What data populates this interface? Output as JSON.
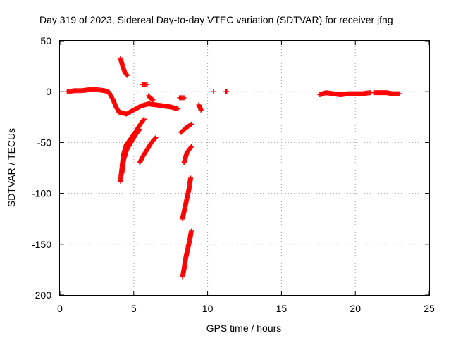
{
  "chart_data": {
    "type": "scatter",
    "title": "Day 319 of 2023, Sidereal Day-to-day VTEC variation (SDTVAR) for receiver jfng",
    "xlabel": "GPS time / hours",
    "ylabel": "SDTVAR / TECUs",
    "xlim": [
      0,
      25
    ],
    "ylim": [
      -200,
      50
    ],
    "xticks": [
      "0",
      "5",
      "10",
      "15",
      "20",
      "25"
    ],
    "yticks": [
      "50",
      "0",
      "-50",
      "-100",
      "-150",
      "-200"
    ],
    "grid": true,
    "marker": "+",
    "color": "#ff0000",
    "segments": [
      {
        "x": [
          0.5,
          1.0,
          1.5,
          2.0,
          2.5,
          3.0,
          3.3
        ],
        "y": [
          0,
          1,
          1,
          2,
          2,
          1,
          0
        ]
      },
      {
        "x": [
          3.3,
          3.6,
          3.8,
          4.0
        ],
        "y": [
          0,
          -8,
          -15,
          -20
        ]
      },
      {
        "x": [
          4.0,
          4.5,
          5.0,
          5.5,
          6.0,
          6.5,
          7.0,
          7.5,
          8.0
        ],
        "y": [
          -20,
          -22,
          -18,
          -14,
          -12,
          -13,
          -14,
          -15,
          -17
        ]
      },
      {
        "x": [
          4.1,
          4.25,
          4.4,
          4.55
        ],
        "y": [
          33,
          25,
          19,
          16
        ]
      },
      {
        "x": [
          5.6,
          5.9
        ],
        "y": [
          7,
          7
        ]
      },
      {
        "x": [
          6.0,
          6.1,
          6.3
        ],
        "y": [
          -4,
          -6,
          -8
        ]
      },
      {
        "x": [
          8.1,
          8.4
        ],
        "y": [
          -6,
          -6
        ]
      },
      {
        "x": [
          4.1,
          4.2,
          4.3,
          4.5,
          4.8,
          5.1,
          5.4,
          5.7
        ],
        "y": [
          -88,
          -75,
          -62,
          -52,
          -46,
          -40,
          -33,
          -27
        ]
      },
      {
        "x": [
          4.2,
          4.3,
          4.5,
          4.8,
          5.1,
          5.4
        ],
        "y": [
          -80,
          -68,
          -58,
          -50,
          -43,
          -37
        ]
      },
      {
        "x": [
          5.4,
          5.6,
          5.9,
          6.2,
          6.5
        ],
        "y": [
          -70,
          -64,
          -57,
          -50,
          -45
        ]
      },
      {
        "x": [
          8.2,
          8.5,
          8.9
        ],
        "y": [
          -40,
          -36,
          -32
        ]
      },
      {
        "x": [
          8.4,
          8.6,
          8.9
        ],
        "y": [
          -70,
          -60,
          -54
        ]
      },
      {
        "x": [
          8.3,
          8.45,
          8.6,
          8.75,
          8.85
        ],
        "y": [
          -125,
          -115,
          -105,
          -95,
          -85
        ]
      },
      {
        "x": [
          8.3,
          8.4,
          8.5,
          8.65,
          8.8,
          8.9
        ],
        "y": [
          -182,
          -175,
          -165,
          -155,
          -145,
          -137
        ]
      },
      {
        "x": [
          9.4,
          9.5,
          9.55
        ],
        "y": [
          -13,
          -16,
          -18
        ]
      },
      {
        "x": [
          10.4
        ],
        "y": [
          0
        ]
      },
      {
        "x": [
          11.2,
          11.3
        ],
        "y": [
          0,
          0
        ]
      },
      {
        "x": [
          17.6,
          18.0,
          18.5,
          19.0,
          19.5,
          20.0,
          20.5,
          21.0
        ],
        "y": [
          -3,
          -1,
          -2,
          -3,
          -2,
          -2,
          -2,
          -1
        ]
      },
      {
        "x": [
          21.3,
          21.9,
          22.1,
          22.5,
          23.0
        ],
        "y": [
          -1,
          -1,
          -1,
          -2,
          -2
        ]
      }
    ]
  }
}
